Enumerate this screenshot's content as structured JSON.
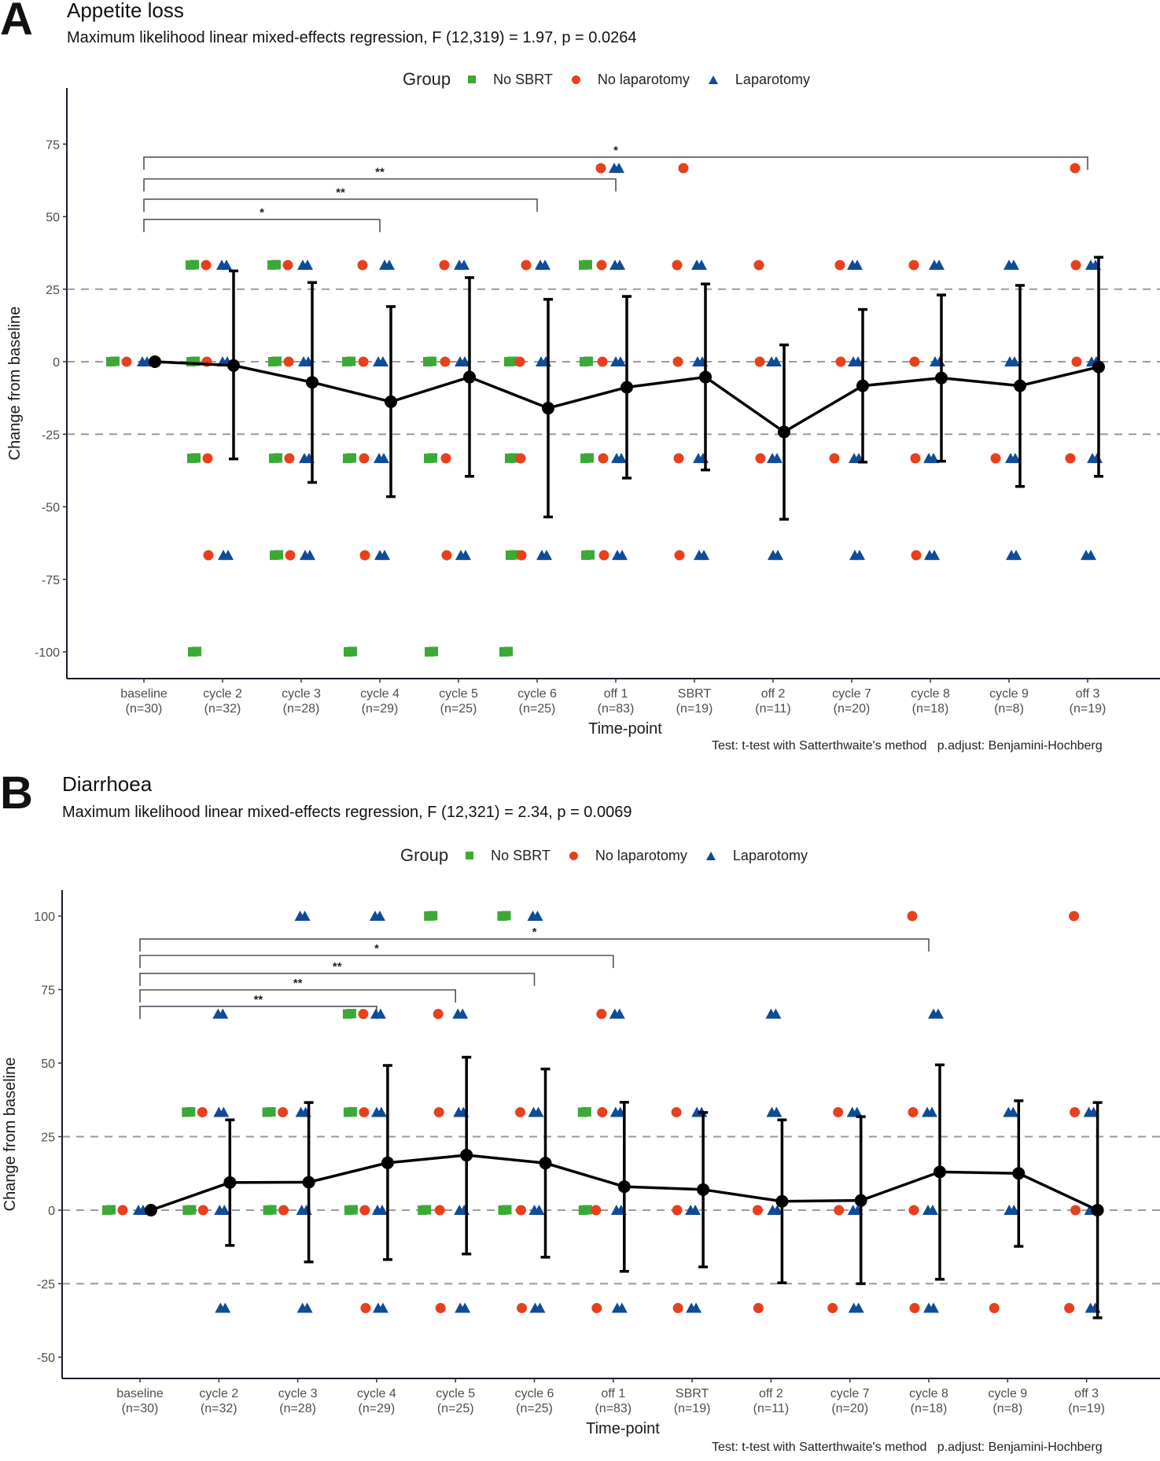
{
  "colors": {
    "no_sbrt": "#3aaa35",
    "no_laparotomy": "#e8401c",
    "laparotomy": "#0e4c96",
    "mean_line": "#000000",
    "reference_line": "#9a9a9a",
    "bracket": "#55525f"
  },
  "chart_data": [
    {
      "panel": "A",
      "type": "scatter",
      "title": "Appetite loss",
      "subtitle": "Maximum likelihood linear mixed-effects regression, F (12,319) = 1.97, p = 0.0264",
      "xlabel": "Time-point",
      "ylabel": "Change from baseline",
      "ylim": [
        -110,
        85
      ],
      "yticks": [
        75,
        50,
        25,
        0,
        -25,
        -50,
        -75,
        -100
      ],
      "reference_lines": [
        25,
        0,
        -25
      ],
      "legend": {
        "title": "Group",
        "position": "top-center",
        "entries": [
          "No SBRT",
          "No laparotomy",
          "Laparotomy"
        ]
      },
      "categories": [
        "baseline",
        "cycle 2",
        "cycle 3",
        "cycle 4",
        "cycle 5",
        "cycle 6",
        "off 1",
        "SBRT",
        "off 2",
        "cycle 7",
        "cycle 8",
        "cycle 9",
        "off 3"
      ],
      "category_n": [
        "(n=30)",
        "(n=32)",
        "(n=28)",
        "(n=29)",
        "(n=25)",
        "(n=25)",
        "(n=83)",
        "(n=19)",
        "(n=11)",
        "(n=20)",
        "(n=18)",
        "(n=8)",
        "(n=19)"
      ],
      "mean": [
        0,
        -1.3,
        -7.1,
        -13.8,
        -5.3,
        -16.0,
        -8.8,
        -5.3,
        -24.2,
        -8.3,
        -5.6,
        -8.3,
        -1.8
      ],
      "ci_upper": [
        0,
        31.3,
        27.3,
        19.0,
        29.0,
        21.5,
        22.5,
        26.8,
        5.8,
        18.0,
        23.0,
        26.3,
        36.0
      ],
      "ci_lower": [
        0,
        -33.5,
        -41.6,
        -46.5,
        -39.5,
        -53.5,
        -40.1,
        -37.3,
        -54.3,
        -34.6,
        -34.3,
        -43.0,
        -39.5
      ],
      "significance": [
        {
          "from": "baseline",
          "to": "cycle 4",
          "label": "*",
          "y": 49
        },
        {
          "from": "baseline",
          "to": "cycle 6",
          "label": "**",
          "y": 56
        },
        {
          "from": "baseline",
          "to": "off 1",
          "label": "**",
          "y": 63
        },
        {
          "from": "baseline",
          "to": "off 3",
          "label": "*",
          "y": 70.5
        }
      ],
      "points": {
        "No SBRT": [
          [
            0,
            0
          ],
          [
            1,
            33.3
          ],
          [
            1,
            0
          ],
          [
            1,
            -33.3
          ],
          [
            1,
            -100
          ],
          [
            2,
            33.3
          ],
          [
            2,
            0
          ],
          [
            2,
            -33.3
          ],
          [
            2,
            -66.7
          ],
          [
            3,
            0
          ],
          [
            3,
            -33.3
          ],
          [
            3,
            -100
          ],
          [
            4,
            0
          ],
          [
            4,
            -33.3
          ],
          [
            4,
            -100
          ],
          [
            5,
            0
          ],
          [
            5,
            -33.3
          ],
          [
            5,
            -66.7
          ],
          [
            5,
            -100
          ],
          [
            6,
            33.3
          ],
          [
            6,
            0
          ],
          [
            6,
            -33.3
          ],
          [
            6,
            -66.7
          ]
        ],
        "No laparotomy": [
          [
            0,
            0
          ],
          [
            1,
            33.3
          ],
          [
            1,
            0
          ],
          [
            1,
            -33.3
          ],
          [
            1,
            -66.7
          ],
          [
            2,
            33.3
          ],
          [
            2,
            0
          ],
          [
            2,
            -33.3
          ],
          [
            2,
            -66.7
          ],
          [
            3,
            33.3
          ],
          [
            3,
            0
          ],
          [
            3,
            -33.3
          ],
          [
            3,
            -66.7
          ],
          [
            4,
            33.3
          ],
          [
            4,
            0
          ],
          [
            4,
            -33.3
          ],
          [
            4,
            -66.7
          ],
          [
            5,
            33.3
          ],
          [
            5,
            0
          ],
          [
            5,
            -33.3
          ],
          [
            5,
            -66.7
          ],
          [
            6,
            66.7
          ],
          [
            6,
            33.3
          ],
          [
            6,
            0
          ],
          [
            6,
            -33.3
          ],
          [
            6,
            -66.7
          ],
          [
            7,
            66.7
          ],
          [
            7,
            33.3
          ],
          [
            7,
            0
          ],
          [
            7,
            -33.3
          ],
          [
            7,
            -66.7
          ],
          [
            8,
            33.3
          ],
          [
            8,
            0
          ],
          [
            8,
            -33.3
          ],
          [
            9,
            33.3
          ],
          [
            9,
            0
          ],
          [
            9,
            -33.3
          ],
          [
            10,
            33.3
          ],
          [
            10,
            0
          ],
          [
            10,
            -33.3
          ],
          [
            10,
            -66.7
          ],
          [
            11,
            -33.3
          ],
          [
            12,
            66.7
          ],
          [
            12,
            33.3
          ],
          [
            12,
            0
          ],
          [
            12,
            -33.3
          ]
        ],
        "Laparotomy": [
          [
            0,
            0
          ],
          [
            1,
            33.3
          ],
          [
            1,
            0
          ],
          [
            1,
            -66.7
          ],
          [
            2,
            33.3
          ],
          [
            2,
            0
          ],
          [
            2,
            -33.3
          ],
          [
            2,
            -66.7
          ],
          [
            3,
            33.3
          ],
          [
            3,
            0
          ],
          [
            3,
            -33.3
          ],
          [
            3,
            -66.7
          ],
          [
            4,
            33.3
          ],
          [
            4,
            0
          ],
          [
            4,
            -66.7
          ],
          [
            5,
            33.3
          ],
          [
            5,
            0
          ],
          [
            5,
            -66.7
          ],
          [
            6,
            66.7
          ],
          [
            6,
            33.3
          ],
          [
            6,
            0
          ],
          [
            6,
            -33.3
          ],
          [
            6,
            -66.7
          ],
          [
            7,
            33.3
          ],
          [
            7,
            0
          ],
          [
            7,
            -33.3
          ],
          [
            7,
            -66.7
          ],
          [
            8,
            0
          ],
          [
            8,
            -33.3
          ],
          [
            8,
            -66.7
          ],
          [
            9,
            33.3
          ],
          [
            9,
            0
          ],
          [
            9,
            -33.3
          ],
          [
            9,
            -66.7
          ],
          [
            10,
            33.3
          ],
          [
            10,
            0
          ],
          [
            10,
            -33.3
          ],
          [
            10,
            -66.7
          ],
          [
            11,
            33.3
          ],
          [
            11,
            0
          ],
          [
            11,
            -33.3
          ],
          [
            11,
            -66.7
          ],
          [
            12,
            33.3
          ],
          [
            12,
            0
          ],
          [
            12,
            -33.3
          ],
          [
            12,
            -66.7
          ]
        ]
      },
      "footer": "Test: t-test with Satterthwaite's method   p.adjust: Benjamini-Hochberg"
    },
    {
      "panel": "B",
      "type": "scatter",
      "title": "Diarrhoea",
      "subtitle": "Maximum likelihood linear mixed-effects regression, F (12,321) = 2.34, p = 0.0069",
      "xlabel": "Time-point",
      "ylabel": "Change from baseline",
      "ylim": [
        -57,
        108
      ],
      "yticks": [
        100,
        75,
        50,
        25,
        0,
        -25,
        -50
      ],
      "reference_lines": [
        25,
        0,
        -25
      ],
      "legend": {
        "title": "Group",
        "position": "top-center",
        "entries": [
          "No SBRT",
          "No laparotomy",
          "Laparotomy"
        ]
      },
      "categories": [
        "baseline",
        "cycle 2",
        "cycle 3",
        "cycle 4",
        "cycle 5",
        "cycle 6",
        "off 1",
        "SBRT",
        "off 2",
        "cycle 7",
        "cycle 8",
        "cycle 9",
        "off 3"
      ],
      "category_n": [
        "(n=30)",
        "(n=32)",
        "(n=28)",
        "(n=29)",
        "(n=25)",
        "(n=25)",
        "(n=83)",
        "(n=19)",
        "(n=11)",
        "(n=20)",
        "(n=18)",
        "(n=8)",
        "(n=19)"
      ],
      "mean": [
        0,
        9.4,
        9.5,
        16.1,
        18.7,
        16.0,
        8.0,
        7.0,
        3.0,
        3.3,
        13.0,
        12.5,
        0
      ],
      "ci_upper": [
        0,
        30.7,
        36.6,
        49.2,
        52.0,
        48.0,
        36.7,
        33.2,
        30.7,
        31.8,
        49.4,
        37.2,
        36.6
      ],
      "ci_lower": [
        0,
        -12.0,
        -17.6,
        -16.8,
        -14.9,
        -16.0,
        -20.8,
        -19.3,
        -24.7,
        -25.0,
        -23.5,
        -12.3,
        -36.6
      ],
      "significance": [
        {
          "from": "baseline",
          "to": "cycle 4",
          "label": "**",
          "y": 69.3
        },
        {
          "from": "baseline",
          "to": "cycle 5",
          "label": "**",
          "y": 74.9
        },
        {
          "from": "baseline",
          "to": "cycle 6",
          "label": "**",
          "y": 80.5
        },
        {
          "from": "baseline",
          "to": "off 1",
          "label": "*",
          "y": 86.6
        },
        {
          "from": "baseline",
          "to": "cycle 8",
          "label": "*",
          "y": 92.2
        }
      ],
      "points": {
        "No SBRT": [
          [
            0,
            0
          ],
          [
            1,
            33.3
          ],
          [
            1,
            0
          ],
          [
            2,
            33.3
          ],
          [
            2,
            0
          ],
          [
            3,
            66.7
          ],
          [
            3,
            33.3
          ],
          [
            3,
            0
          ],
          [
            4,
            100
          ],
          [
            4,
            0
          ],
          [
            5,
            100
          ],
          [
            5,
            0
          ],
          [
            6,
            33.3
          ],
          [
            6,
            0
          ]
        ],
        "No laparotomy": [
          [
            0,
            0
          ],
          [
            1,
            33.3
          ],
          [
            1,
            0
          ],
          [
            2,
            33.3
          ],
          [
            2,
            0
          ],
          [
            3,
            66.7
          ],
          [
            3,
            33.3
          ],
          [
            3,
            0
          ],
          [
            3,
            -33.3
          ],
          [
            4,
            66.7
          ],
          [
            4,
            33.3
          ],
          [
            4,
            0
          ],
          [
            4,
            -33.3
          ],
          [
            5,
            33.3
          ],
          [
            5,
            0
          ],
          [
            5,
            -33.3
          ],
          [
            6,
            66.7
          ],
          [
            6,
            33.3
          ],
          [
            6,
            0
          ],
          [
            6,
            -33.3
          ],
          [
            7,
            33.3
          ],
          [
            7,
            0
          ],
          [
            7,
            -33.3
          ],
          [
            8,
            0
          ],
          [
            8,
            -33.3
          ],
          [
            9,
            33.3
          ],
          [
            9,
            0
          ],
          [
            9,
            -33.3
          ],
          [
            10,
            100
          ],
          [
            10,
            33.3
          ],
          [
            10,
            0
          ],
          [
            10,
            -33.3
          ],
          [
            11,
            -33.3
          ],
          [
            12,
            100
          ],
          [
            12,
            33.3
          ],
          [
            12,
            0
          ],
          [
            12,
            -33.3
          ]
        ],
        "Laparotomy": [
          [
            0,
            0
          ],
          [
            1,
            66.7
          ],
          [
            1,
            33.3
          ],
          [
            1,
            0
          ],
          [
            1,
            -33.3
          ],
          [
            2,
            100
          ],
          [
            2,
            33.3
          ],
          [
            2,
            0
          ],
          [
            2,
            -33.3
          ],
          [
            3,
            100
          ],
          [
            3,
            66.7
          ],
          [
            3,
            33.3
          ],
          [
            3,
            0
          ],
          [
            3,
            -33.3
          ],
          [
            4,
            66.7
          ],
          [
            4,
            33.3
          ],
          [
            4,
            0
          ],
          [
            4,
            -33.3
          ],
          [
            5,
            100
          ],
          [
            5,
            33.3
          ],
          [
            5,
            0
          ],
          [
            5,
            -33.3
          ],
          [
            6,
            66.7
          ],
          [
            6,
            33.3
          ],
          [
            6,
            0
          ],
          [
            6,
            -33.3
          ],
          [
            7,
            33.3
          ],
          [
            7,
            0
          ],
          [
            7,
            -33.3
          ],
          [
            8,
            66.7
          ],
          [
            8,
            33.3
          ],
          [
            8,
            0
          ],
          [
            9,
            33.3
          ],
          [
            9,
            0
          ],
          [
            9,
            -33.3
          ],
          [
            10,
            66.7
          ],
          [
            10,
            33.3
          ],
          [
            10,
            0
          ],
          [
            10,
            -33.3
          ],
          [
            11,
            33.3
          ],
          [
            11,
            0
          ],
          [
            12,
            33.3
          ],
          [
            12,
            0
          ],
          [
            12,
            -33.3
          ]
        ]
      },
      "footer": "Test: t-test with Satterthwaite's method   p.adjust: Benjamini-Hochberg"
    }
  ]
}
